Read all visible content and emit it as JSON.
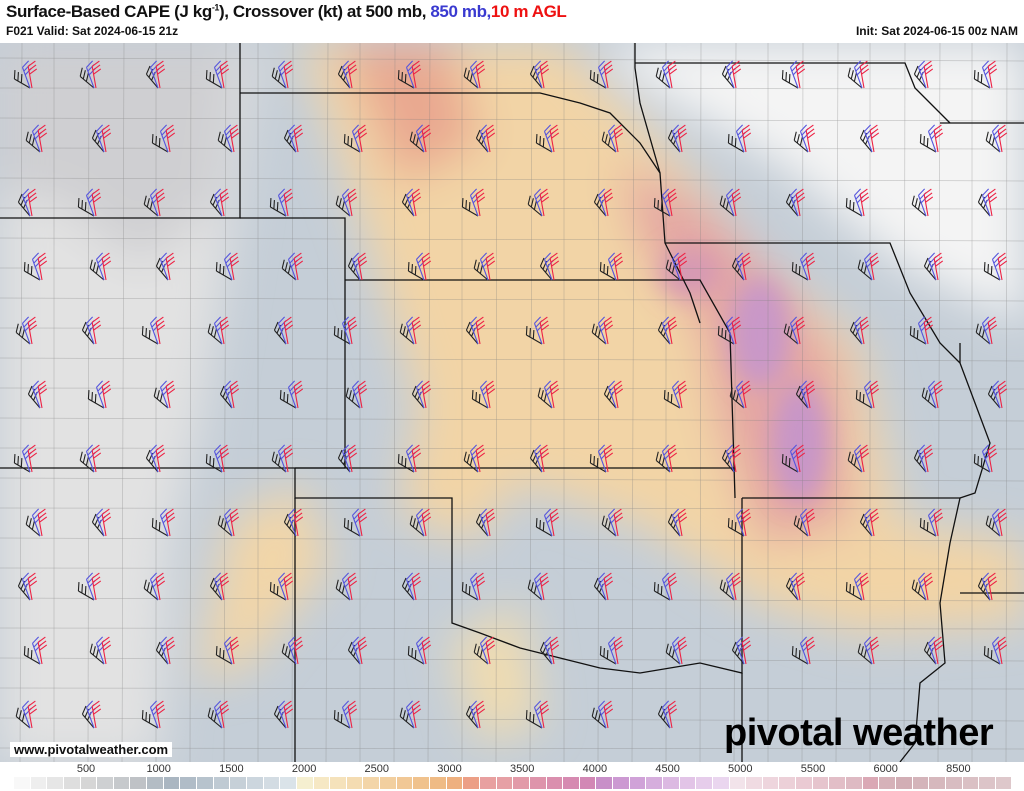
{
  "header": {
    "title_main": "Surface-Based CAPE (J kg",
    "title_sup": "-1",
    "title_rest": "), Crossover (kt) at 500 mb, ",
    "title_blue": "850 mb,",
    "title_red": "10 m AGL",
    "valid": "F021 Valid: Sat 2024-06-15 21z",
    "init": "Init: Sat 2024-06-15 00z NAM"
  },
  "colors": {
    "blue": "#3a3ad0",
    "red": "#ee1111",
    "barb_500": "#222222",
    "barb_850": "#5555dd",
    "barb_10m": "#ee2244"
  },
  "footer": {
    "website": "www.pivotalweather.com",
    "logo": "pivotal weather"
  },
  "colorbar": {
    "ticks": [
      "500",
      "1000",
      "1500",
      "2000",
      "2500",
      "3000",
      "3500",
      "4000",
      "4500",
      "5000",
      "5500",
      "6000",
      "8500"
    ],
    "colors": [
      "#f8f8f8",
      "#eeeeee",
      "#e6e6e6",
      "#dedede",
      "#d6d6d6",
      "#ced0d2",
      "#c6c9cc",
      "#bfc2c6",
      "#b3bcc4",
      "#aab6c1",
      "#b0bcc7",
      "#b7c3cd",
      "#bfcad3",
      "#c6d0d8",
      "#ccd6de",
      "#d3dce3",
      "#dae3e9",
      "#f5efd0",
      "#f6e8c4",
      "#f5e2bb",
      "#f4dcb2",
      "#f3d5a8",
      "#f2cf9f",
      "#f1c896",
      "#f0c28d",
      "#efbb85",
      "#eeb07f",
      "#ec9f86",
      "#e8a0a0",
      "#e6a0a5",
      "#e29aa8",
      "#de94ab",
      "#da8fae",
      "#d68ab1",
      "#d287b5",
      "#c88fc8",
      "#cc99d2",
      "#d0a2d8",
      "#d6aedd",
      "#dcb9e2",
      "#e2c4e7",
      "#e6cdeb",
      "#ead6ef",
      "#f2e3ea",
      "#f0dbe2",
      "#eed5dd",
      "#ecd0d8",
      "#eacad3",
      "#e6c4cd",
      "#e2bec7",
      "#debac3",
      "#daa8b5",
      "#d6b2b9",
      "#d2aeb5",
      "#d4b4ba",
      "#d6b8bd",
      "#d8bcc1",
      "#dac0c4",
      "#dcc4c8",
      "#dec8cb"
    ]
  }
}
